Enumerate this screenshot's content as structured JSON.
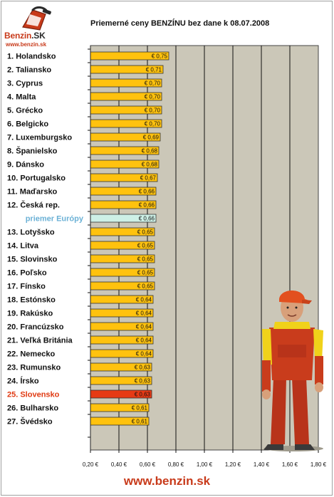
{
  "logo": {
    "brand_part1": "Benzin",
    "brand_part2": ".SK",
    "url": "www.benzin.sk"
  },
  "footer": {
    "url": "www.benzin.sk"
  },
  "colors": {
    "plot_bg": "#cbc7b8",
    "bar": "#ffc20e",
    "bar_border": "#333333",
    "average_bar": "#cdf0e6",
    "highlight_bar": "#e63a14",
    "average_label": "#6bb1d6",
    "highlight_label": "#e03a12"
  },
  "mascot": {
    "icon": "gas-station-attendant-mascot-icon"
  },
  "chart_data": {
    "type": "bar",
    "orientation": "horizontal",
    "title": "Priemerné ceny BENZÍNU bez dane k 08.07.2008",
    "xlabel": "",
    "ylabel": "",
    "xlim": [
      0.2,
      1.8
    ],
    "xticks": [
      0.2,
      0.4,
      0.6,
      0.8,
      1.0,
      1.2,
      1.4,
      1.6,
      1.8
    ],
    "xtick_labels": [
      "0,20 €",
      "0,40 €",
      "0,60 €",
      "0,80 €",
      "1,00 €",
      "1,20 €",
      "1,40 €",
      "1,60 €",
      "1,80 €"
    ],
    "grid": true,
    "legend": "none",
    "categories": [
      "1. Holandsko",
      "2. Taliansko",
      "3. Cyprus",
      "4. Malta",
      "5. Grécko",
      "6. Belgicko",
      "7. Luxemburgsko",
      "8. Španielsko",
      "9. Dánsko",
      "10. Portugalsko",
      "11. Maďarsko",
      "12. Česká rep.",
      "priemer Európy",
      "13. Lotyšsko",
      "14. Litva",
      "15. Slovinsko",
      "16. Poľsko",
      "17. Fínsko",
      "18. Estónsko",
      "19. Rakúsko",
      "20. Francúzsko",
      "21. Veľká Británia",
      "22. Nemecko",
      "23. Rumunsko",
      "24. Írsko",
      "25. Slovensko",
      "26. Bulharsko",
      "27. Švédsko"
    ],
    "values": [
      0.75,
      0.71,
      0.7,
      0.7,
      0.7,
      0.7,
      0.69,
      0.68,
      0.68,
      0.67,
      0.66,
      0.66,
      0.66,
      0.65,
      0.65,
      0.65,
      0.65,
      0.65,
      0.64,
      0.64,
      0.64,
      0.64,
      0.64,
      0.63,
      0.63,
      0.63,
      0.61,
      0.61
    ],
    "value_labels": [
      "€ 0,75",
      "€ 0,71",
      "€ 0,70",
      "€ 0,70",
      "€ 0,70",
      "€ 0,70",
      "€ 0,69",
      "€ 0,68",
      "€ 0,68",
      "€ 0,67",
      "€ 0,66",
      "€ 0,66",
      "€ 0,66",
      "€ 0,65",
      "€ 0,65",
      "€ 0,65",
      "€ 0,65",
      "€ 0,65",
      "€ 0,64",
      "€ 0,64",
      "€ 0,64",
      "€ 0,64",
      "€ 0,64",
      "€ 0,63",
      "€ 0,63",
      "€ 0,63",
      "€ 0,61",
      "€ 0,61"
    ],
    "average_category": "priemer Európy",
    "highlight_category": "25. Slovensko"
  }
}
